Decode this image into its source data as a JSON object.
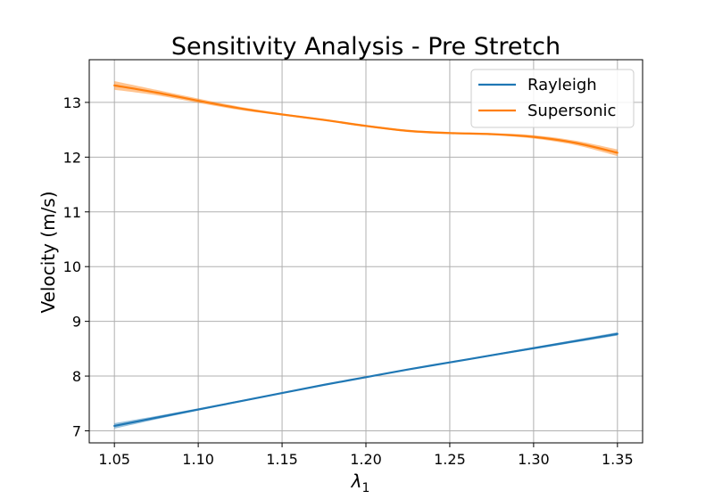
{
  "chart_data": {
    "type": "line",
    "title": "Sensitivity Analysis - Pre Stretch",
    "xlabel": "λ",
    "xlabel_sub": "1",
    "ylabel": "Velocity (m/s)",
    "xlim": [
      1.035,
      1.365
    ],
    "ylim": [
      6.78,
      13.78
    ],
    "xticks": [
      1.05,
      1.1,
      1.15,
      1.2,
      1.25,
      1.3,
      1.35
    ],
    "xtick_labels": [
      "1.05",
      "1.10",
      "1.15",
      "1.20",
      "1.25",
      "1.30",
      "1.35"
    ],
    "yticks": [
      7,
      8,
      9,
      10,
      11,
      12,
      13
    ],
    "ytick_labels": [
      "7",
      "8",
      "9",
      "10",
      "11",
      "12",
      "13"
    ],
    "grid": true,
    "legend_position": "top-right",
    "x": [
      1.05,
      1.075,
      1.1,
      1.125,
      1.15,
      1.175,
      1.2,
      1.225,
      1.25,
      1.275,
      1.3,
      1.325,
      1.35
    ],
    "series": [
      {
        "name": "Rayleigh",
        "color": "#1f77b4",
        "values": [
          7.09,
          7.24,
          7.39,
          7.54,
          7.69,
          7.84,
          7.98,
          8.12,
          8.25,
          8.38,
          8.51,
          8.64,
          8.77
        ],
        "band": [
          0.05,
          0.03,
          0.02,
          0.015,
          0.01,
          0.01,
          0.01,
          0.01,
          0.01,
          0.015,
          0.02,
          0.025,
          0.03
        ]
      },
      {
        "name": "Supersonic",
        "color": "#ff7f0e",
        "values": [
          13.31,
          13.18,
          13.03,
          12.89,
          12.78,
          12.68,
          12.57,
          12.48,
          12.44,
          12.42,
          12.37,
          12.26,
          12.08
        ],
        "band": [
          0.08,
          0.05,
          0.04,
          0.03,
          0.02,
          0.02,
          0.02,
          0.02,
          0.02,
          0.02,
          0.03,
          0.04,
          0.06
        ]
      }
    ]
  }
}
